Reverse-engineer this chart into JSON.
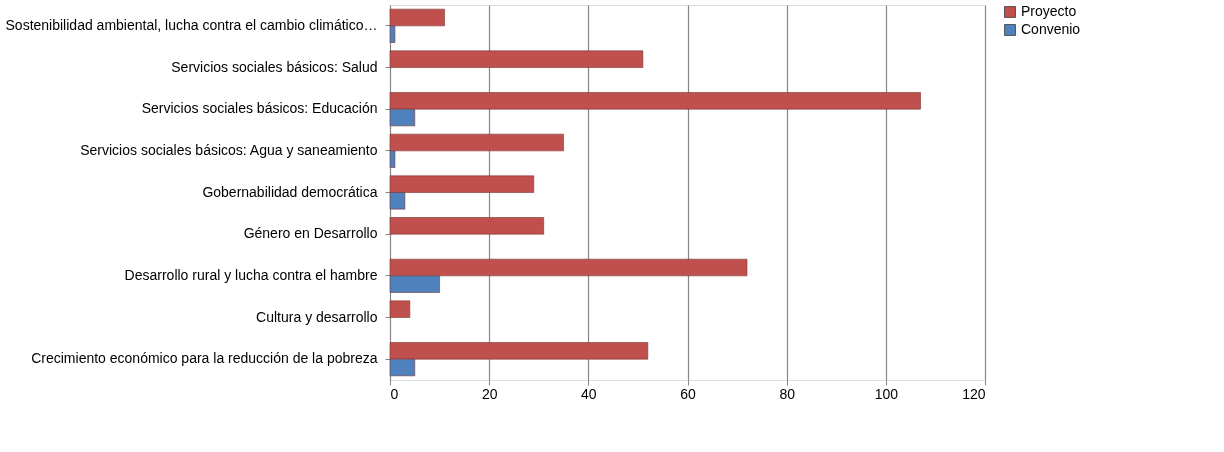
{
  "chart_data": {
    "type": "bar",
    "orientation": "horizontal",
    "categories": [
      "Sostenibilidad ambiental, lucha contra el cambio climático…",
      "Servicios sociales básicos: Salud",
      "Servicios sociales básicos: Educación",
      "Servicios sociales básicos: Agua y saneamiento",
      "Gobernabilidad democrática",
      "Género en Desarrollo",
      "Desarrollo rural y lucha contra el hambre",
      "Cultura y desarrollo",
      "Crecimiento económico para la reducción de la pobreza"
    ],
    "series": [
      {
        "name": "Proyecto",
        "color": "#c0504d",
        "values": [
          11,
          51,
          107,
          35,
          29,
          31,
          72,
          4,
          52
        ]
      },
      {
        "name": "Convenio",
        "color": "#4f81bd",
        "values": [
          1,
          null,
          5,
          1,
          3,
          null,
          10,
          null,
          5
        ]
      }
    ],
    "xlim": [
      0,
      120
    ],
    "xticks": [
      0,
      20,
      40,
      60,
      80,
      100,
      120
    ],
    "grid": "x",
    "legend": "right"
  }
}
